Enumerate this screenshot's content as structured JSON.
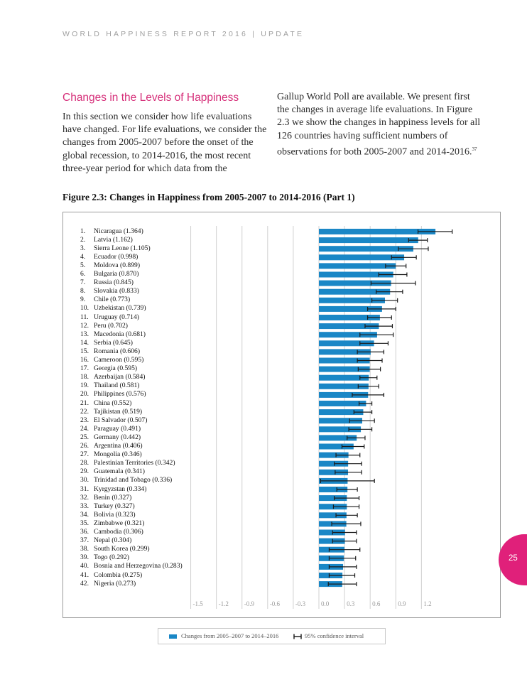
{
  "header": {
    "running_head": "WORLD HAPPINESS REPORT 2016 | UPDATE"
  },
  "section": {
    "heading": "Changes in the Levels of Happiness",
    "paragraph_left": "In this section we consider how life evaluations have changed. For life evaluations, we consider the changes from 2005-2007 before the onset of the global recession, to 2014-2016, the most recent three-year period for which data from the",
    "paragraph_right": "Gallup World Poll are available. We present first the changes in average life evaluations. In Figure 2.3 we show the changes in happiness levels for all 126 countries having sufficient numbers of observations for both 2005-2007 and 2014-2016.",
    "footnote_ref": "37"
  },
  "figure": {
    "title": "Figure 2.3: Changes in Happiness from 2005-2007 to 2014-2016 (Part 1)"
  },
  "legend": {
    "bar_label": "Changes from 2005–2007 to 2014–2016",
    "ci_label": "95% confidence interval"
  },
  "page": {
    "number": "25"
  },
  "colors": {
    "bar": "#1a87c6",
    "accent": "#d6307a",
    "page_tab": "#e0207a",
    "grid": "#d0d0d0"
  },
  "chart_data": {
    "type": "bar",
    "orientation": "horizontal",
    "title": "Figure 2.3: Changes in Happiness from 2005-2007 to 2014-2016 (Part 1)",
    "xlim": [
      -1.5,
      1.35
    ],
    "x_ticks": [
      "-1.5",
      "-1.2",
      "-0.9",
      "-0.6",
      "-0.3",
      "0.0",
      "0.3",
      "0.6",
      "0.9",
      "1.2"
    ],
    "x_tick_values": [
      -1.5,
      -1.2,
      -0.9,
      -0.6,
      -0.3,
      0.0,
      0.3,
      0.6,
      0.9,
      1.2
    ],
    "grid": true,
    "legend_position": "bottom",
    "rows": [
      {
        "rank": "1.",
        "label": "Nicaragua (1.364)",
        "value": 1.364,
        "ci": [
          1.16,
          1.56
        ]
      },
      {
        "rank": "2.",
        "label": "Latvia (1.162)",
        "value": 1.162,
        "ci": [
          1.05,
          1.27
        ]
      },
      {
        "rank": "3.",
        "label": "Sierra Leone (1.105)",
        "value": 1.105,
        "ci": [
          0.93,
          1.28
        ]
      },
      {
        "rank": "4.",
        "label": "Ecuador (0.998)",
        "value": 0.998,
        "ci": [
          0.85,
          1.14
        ]
      },
      {
        "rank": "5.",
        "label": "Moldova (0.899)",
        "value": 0.899,
        "ci": [
          0.78,
          1.02
        ]
      },
      {
        "rank": "6.",
        "label": "Bulgaria (0.870)",
        "value": 0.87,
        "ci": [
          0.7,
          1.03
        ]
      },
      {
        "rank": "7.",
        "label": "Russia (0.845)",
        "value": 0.845,
        "ci": [
          0.61,
          1.13
        ]
      },
      {
        "rank": "8.",
        "label": "Slovakia (0.833)",
        "value": 0.833,
        "ci": [
          0.67,
          0.98
        ]
      },
      {
        "rank": "9.",
        "label": "Chile (0.773)",
        "value": 0.773,
        "ci": [
          0.62,
          0.92
        ]
      },
      {
        "rank": "10.",
        "label": "Uzbekistan (0.739)",
        "value": 0.739,
        "ci": [
          0.57,
          0.9
        ]
      },
      {
        "rank": "11.",
        "label": "Uruguay (0.714)",
        "value": 0.714,
        "ci": [
          0.57,
          0.85
        ]
      },
      {
        "rank": "12.",
        "label": "Peru (0.702)",
        "value": 0.702,
        "ci": [
          0.54,
          0.86
        ]
      },
      {
        "rank": "13.",
        "label": "Macedonia (0.681)",
        "value": 0.681,
        "ci": [
          0.48,
          0.87
        ]
      },
      {
        "rank": "14.",
        "label": "Serbia (0.645)",
        "value": 0.645,
        "ci": [
          0.48,
          0.81
        ]
      },
      {
        "rank": "15.",
        "label": "Romania (0.606)",
        "value": 0.606,
        "ci": [
          0.45,
          0.76
        ]
      },
      {
        "rank": "16.",
        "label": "Cameroon (0.595)",
        "value": 0.595,
        "ci": [
          0.45,
          0.74
        ]
      },
      {
        "rank": "17.",
        "label": "Georgia (0.595)",
        "value": 0.595,
        "ci": [
          0.46,
          0.72
        ]
      },
      {
        "rank": "18.",
        "label": "Azerbaijan (0.584)",
        "value": 0.584,
        "ci": [
          0.48,
          0.68
        ]
      },
      {
        "rank": "19.",
        "label": "Thailand (0.581)",
        "value": 0.581,
        "ci": [
          0.46,
          0.7
        ]
      },
      {
        "rank": "20.",
        "label": "Philippines (0.576)",
        "value": 0.576,
        "ci": [
          0.39,
          0.76
        ]
      },
      {
        "rank": "21.",
        "label": "China (0.552)",
        "value": 0.552,
        "ci": [
          0.47,
          0.62
        ]
      },
      {
        "rank": "22.",
        "label": "Tajikistan (0.519)",
        "value": 0.519,
        "ci": [
          0.41,
          0.62
        ]
      },
      {
        "rank": "23.",
        "label": "El Salvador (0.507)",
        "value": 0.507,
        "ci": [
          0.36,
          0.65
        ]
      },
      {
        "rank": "24.",
        "label": "Paraguay (0.491)",
        "value": 0.491,
        "ci": [
          0.35,
          0.62
        ]
      },
      {
        "rank": "25.",
        "label": "Germany (0.442)",
        "value": 0.442,
        "ci": [
          0.33,
          0.54
        ]
      },
      {
        "rank": "26.",
        "label": "Argentina (0.406)",
        "value": 0.406,
        "ci": [
          0.27,
          0.53
        ]
      },
      {
        "rank": "27.",
        "label": "Mongolia (0.346)",
        "value": 0.346,
        "ci": [
          0.2,
          0.48
        ]
      },
      {
        "rank": "28.",
        "label": "Palestinian Territories (0.342)",
        "value": 0.342,
        "ci": [
          0.18,
          0.5
        ]
      },
      {
        "rank": "29.",
        "label": "Guatemala (0.341)",
        "value": 0.341,
        "ci": [
          0.19,
          0.5
        ]
      },
      {
        "rank": "30.",
        "label": "Trinidad and Tobago (0.336)",
        "value": 0.336,
        "ci": [
          0.02,
          0.65
        ]
      },
      {
        "rank": "31.",
        "label": "Kyrgyzstan (0.334)",
        "value": 0.334,
        "ci": [
          0.21,
          0.45
        ]
      },
      {
        "rank": "32.",
        "label": "Benin (0.327)",
        "value": 0.327,
        "ci": [
          0.18,
          0.47
        ]
      },
      {
        "rank": "33.",
        "label": "Turkey (0.327)",
        "value": 0.327,
        "ci": [
          0.17,
          0.47
        ]
      },
      {
        "rank": "34.",
        "label": "Bolivia (0.323)",
        "value": 0.323,
        "ci": [
          0.2,
          0.45
        ]
      },
      {
        "rank": "35.",
        "label": "Zimbabwe (0.321)",
        "value": 0.321,
        "ci": [
          0.15,
          0.49
        ]
      },
      {
        "rank": "36.",
        "label": "Cambodia (0.306)",
        "value": 0.306,
        "ci": [
          0.16,
          0.44
        ]
      },
      {
        "rank": "37.",
        "label": "Nepal (0.304)",
        "value": 0.304,
        "ci": [
          0.16,
          0.44
        ]
      },
      {
        "rank": "38.",
        "label": "South Korea (0.299)",
        "value": 0.299,
        "ci": [
          0.12,
          0.48
        ]
      },
      {
        "rank": "39.",
        "label": "Togo (0.292)",
        "value": 0.292,
        "ci": [
          0.12,
          0.43
        ]
      },
      {
        "rank": "40.",
        "label": "Bosnia and Herzegovina (0.283)",
        "value": 0.283,
        "ci": [
          0.12,
          0.44
        ]
      },
      {
        "rank": "41.",
        "label": "Colombia (0.275)",
        "value": 0.275,
        "ci": [
          0.12,
          0.42
        ]
      },
      {
        "rank": "42.",
        "label": "Nigeria (0.273)",
        "value": 0.273,
        "ci": [
          0.11,
          0.44
        ]
      }
    ]
  }
}
